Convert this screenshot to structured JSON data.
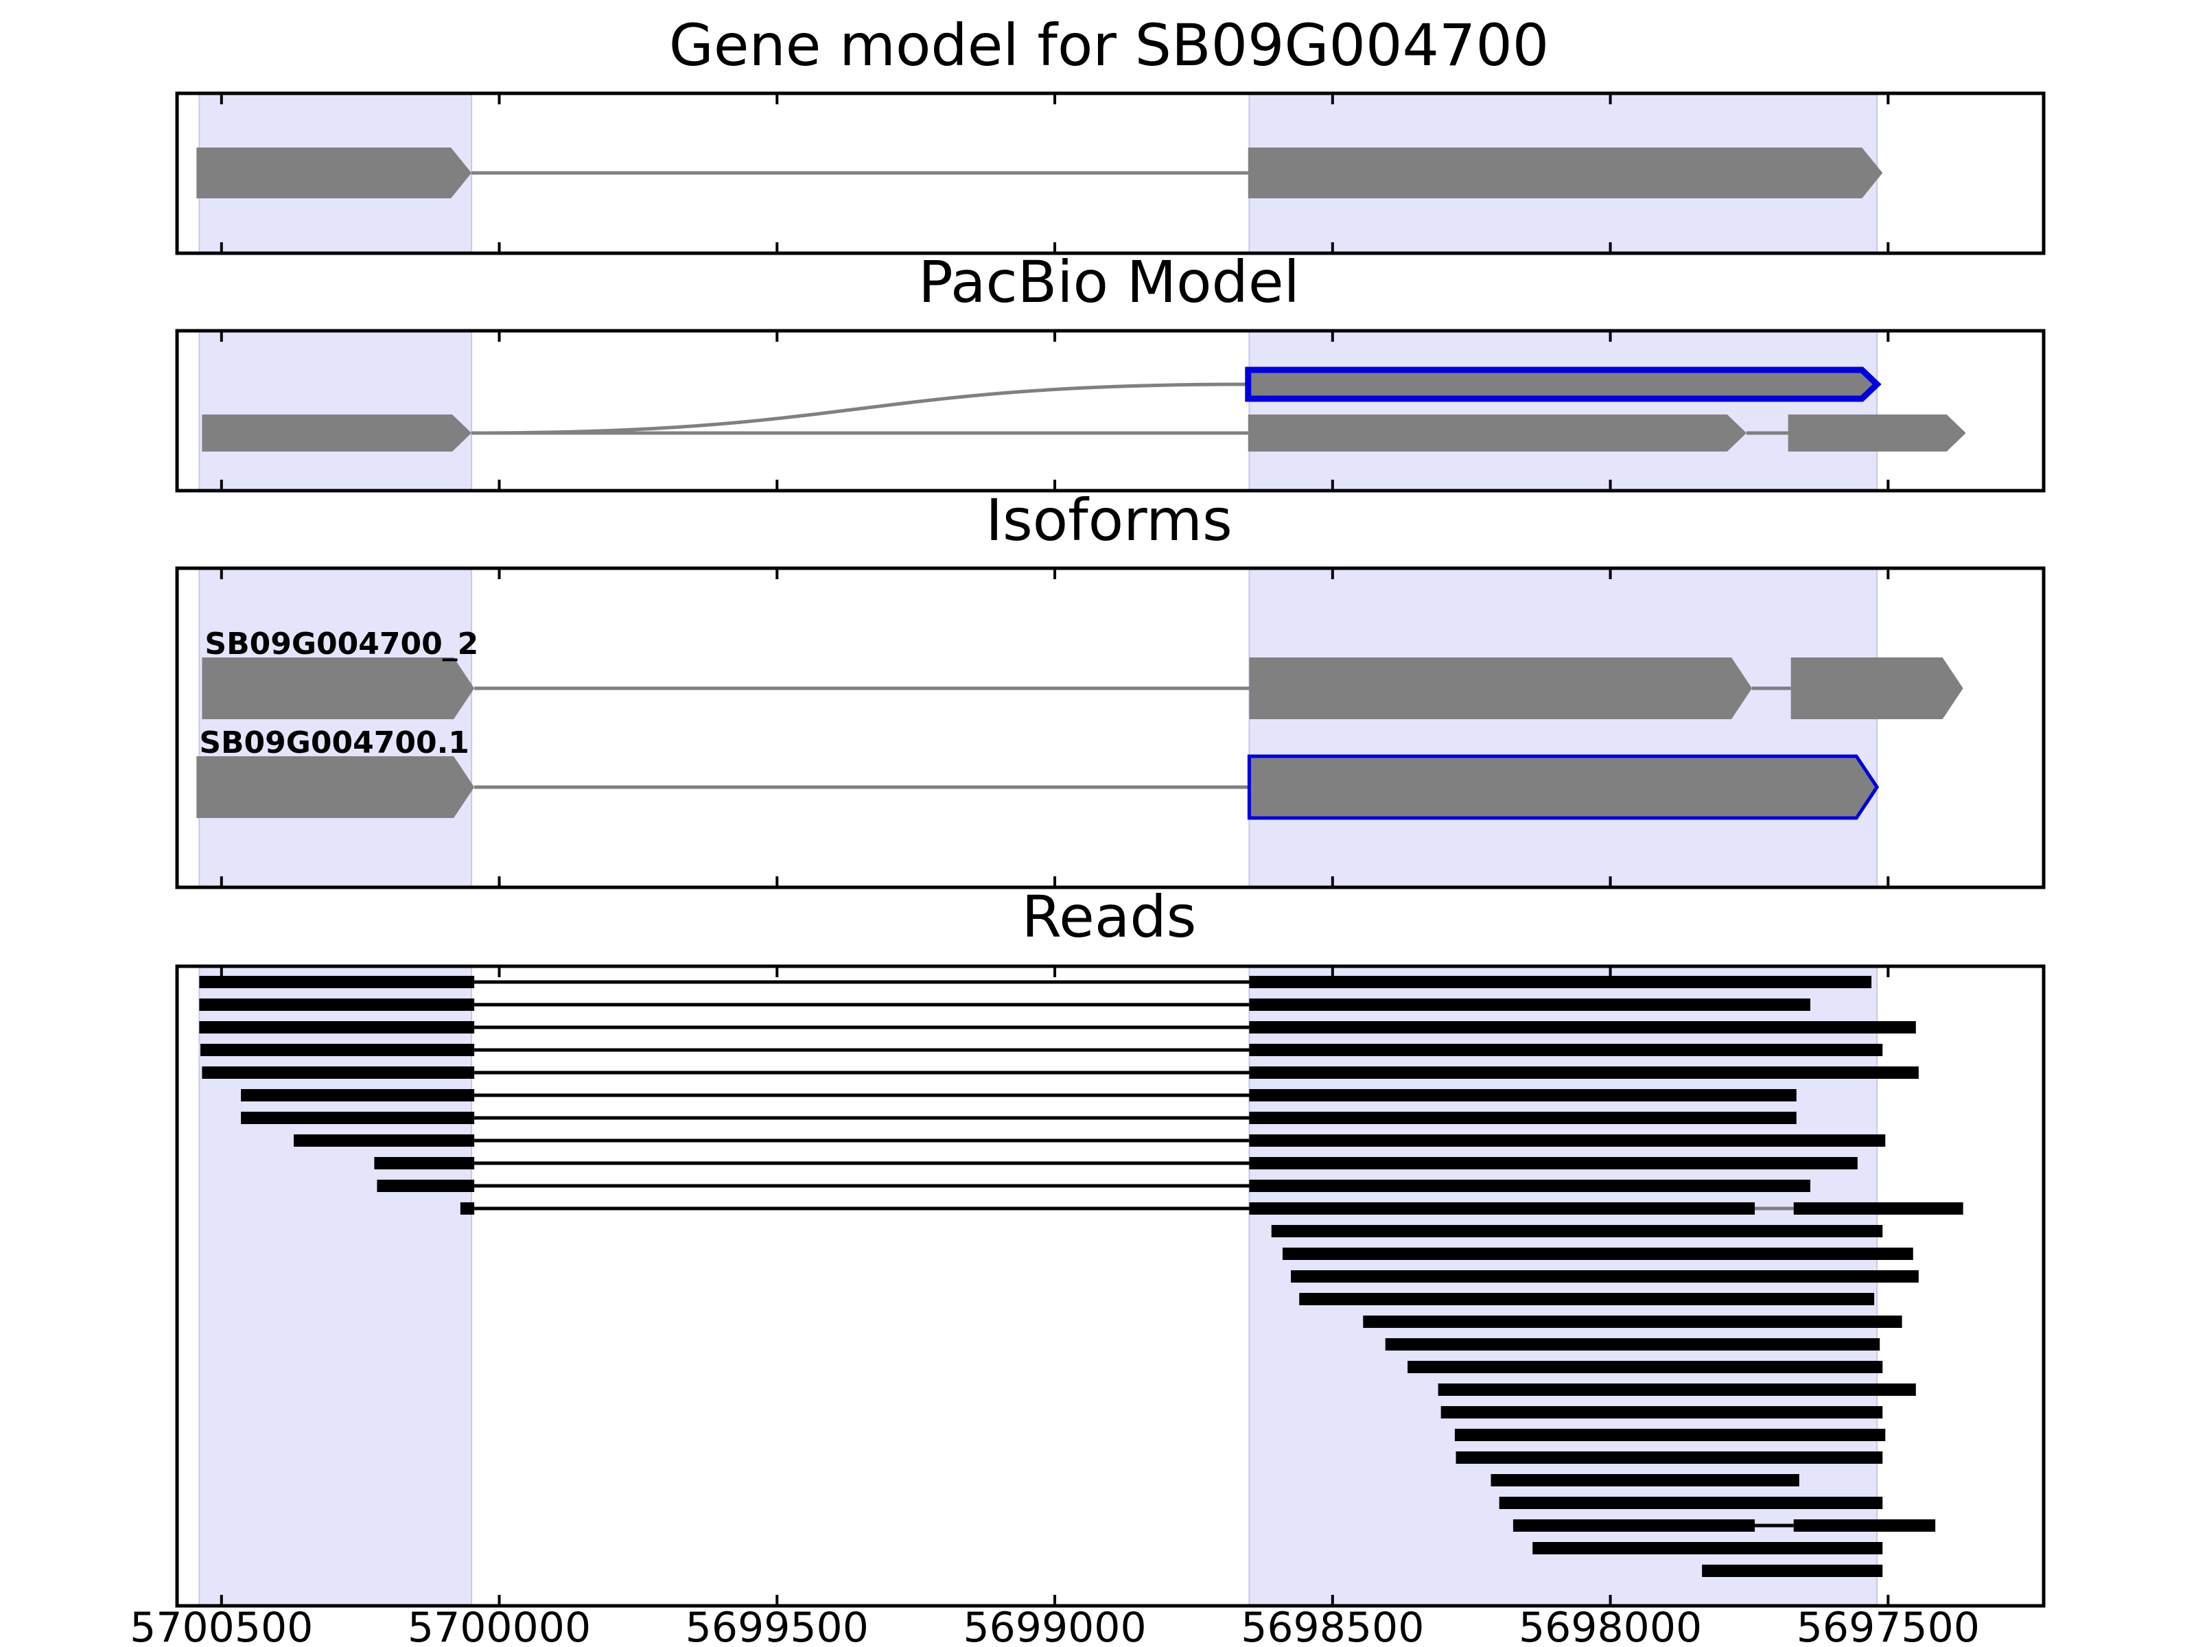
{
  "panels": [
    {
      "key": "gene_model",
      "title": "Gene model for SB09G004700"
    },
    {
      "key": "pacbio",
      "title": "PacBio Model"
    },
    {
      "key": "isoforms",
      "title": "Isoforms"
    },
    {
      "key": "reads",
      "title": "Reads"
    }
  ],
  "x_axis": {
    "ticks": [
      5700500,
      5700000,
      5699500,
      5699000,
      5698500,
      5698000,
      5697500
    ],
    "tick_labels": [
      "5700500",
      "5700000",
      "5699500",
      "5699000",
      "5698500",
      "5698000",
      "5697500"
    ],
    "range": [
      5700580,
      5697220
    ],
    "direction": "reversed"
  },
  "exon_regions": [
    [
      5700540,
      5700050
    ],
    [
      5698650,
      5697520
    ]
  ],
  "colors": {
    "region_fill": "#e4e4fb",
    "feature": "#808080",
    "highlight": "#0000dd",
    "read": "#000000",
    "intron": "#808080"
  },
  "gene_model": {
    "exons": [
      [
        5700545,
        5700050
      ],
      [
        5698652,
        5697510
      ]
    ],
    "strand": "-"
  },
  "pacbio": {
    "rows": [
      {
        "exons": [
          [
            5698652,
            5697520
          ]
        ],
        "highlight": true
      },
      {
        "exons": [
          [
            5700535,
            5700050
          ],
          [
            5698652,
            5697755
          ],
          [
            5697680,
            5697360
          ]
        ]
      }
    ],
    "curve_from": 5700050,
    "curve_to": 5698652
  },
  "isoforms": {
    "rows": [
      {
        "name": "SB09G004700_2",
        "exons": [
          [
            5700535,
            5700045
          ],
          [
            5698650,
            5697745
          ],
          [
            5697675,
            5697365
          ]
        ]
      },
      {
        "name": "SB09G004700.1",
        "exons": [
          [
            5700545,
            5700045
          ],
          [
            5698650,
            5697520
          ]
        ],
        "highlight": true
      }
    ]
  },
  "reads": [
    {
      "exons": [
        [
          5700540,
          5700045
        ],
        [
          5698650,
          5697530
        ]
      ]
    },
    {
      "exons": [
        [
          5700540,
          5700045
        ],
        [
          5698650,
          5697640
        ]
      ]
    },
    {
      "exons": [
        [
          5700540,
          5700045
        ],
        [
          5698650,
          5697450
        ]
      ]
    },
    {
      "exons": [
        [
          5700538,
          5700045
        ],
        [
          5698650,
          5697510
        ]
      ]
    },
    {
      "exons": [
        [
          5700535,
          5700045
        ],
        [
          5698650,
          5697445
        ]
      ]
    },
    {
      "exons": [
        [
          5700465,
          5700045
        ],
        [
          5698650,
          5697665
        ]
      ]
    },
    {
      "exons": [
        [
          5700465,
          5700045
        ],
        [
          5698650,
          5697665
        ]
      ]
    },
    {
      "exons": [
        [
          5700370,
          5700045
        ],
        [
          5698650,
          5697505
        ]
      ]
    },
    {
      "exons": [
        [
          5700225,
          5700045
        ],
        [
          5698650,
          5697555
        ]
      ]
    },
    {
      "exons": [
        [
          5700220,
          5700045
        ],
        [
          5698650,
          5697640
        ]
      ]
    },
    {
      "exons": [
        [
          5700070,
          5700045
        ],
        [
          5698650,
          5697740
        ],
        [
          5697670,
          5697365
        ]
      ]
    },
    {
      "exons": [
        [
          5698610,
          5697510
        ]
      ]
    },
    {
      "exons": [
        [
          5698590,
          5697455
        ]
      ]
    },
    {
      "exons": [
        [
          5698575,
          5697445
        ]
      ]
    },
    {
      "exons": [
        [
          5698560,
          5697525
        ]
      ]
    },
    {
      "exons": [
        [
          5698445,
          5697475
        ]
      ]
    },
    {
      "exons": [
        [
          5698405,
          5697515
        ]
      ]
    },
    {
      "exons": [
        [
          5698365,
          5697510
        ]
      ]
    },
    {
      "exons": [
        [
          5698310,
          5697450
        ]
      ]
    },
    {
      "exons": [
        [
          5698305,
          5697510
        ]
      ]
    },
    {
      "exons": [
        [
          5698280,
          5697505
        ]
      ]
    },
    {
      "exons": [
        [
          5698278,
          5697510
        ]
      ]
    },
    {
      "exons": [
        [
          5698215,
          5697660
        ]
      ]
    },
    {
      "exons": [
        [
          5698200,
          5697510
        ]
      ]
    },
    {
      "exons": [
        [
          5698175,
          5697740
        ],
        [
          5697670,
          5697415
        ]
      ]
    },
    {
      "exons": [
        [
          5698140,
          5697510
        ]
      ]
    },
    {
      "exons": [
        [
          5697835,
          5697510
        ]
      ]
    }
  ]
}
